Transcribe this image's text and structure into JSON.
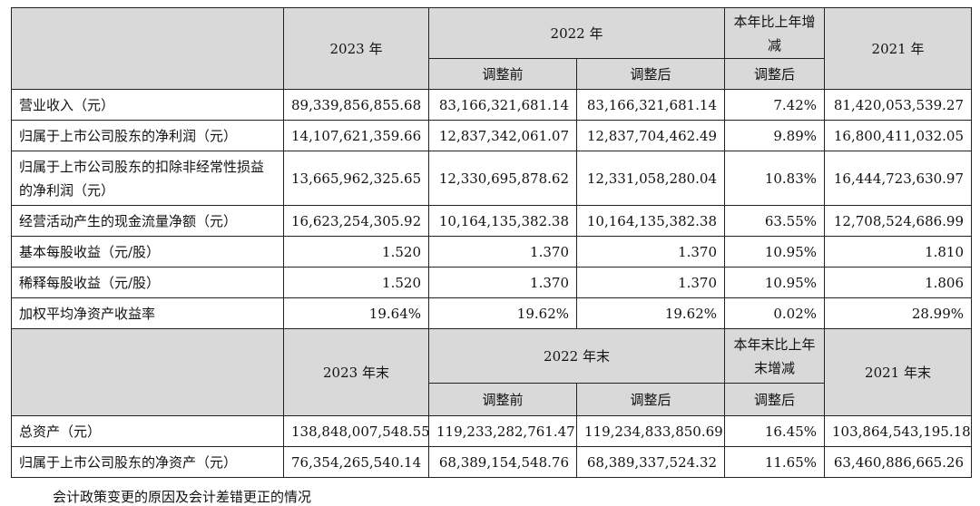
{
  "header1": {
    "col_2023": "2023 年",
    "col_2022": "2022 年",
    "col_change": "本年比上年增减",
    "col_2021": "2021 年",
    "sub_before": "调整前",
    "sub_after": "调整后",
    "sub_change_after": "调整后"
  },
  "rows1": [
    {
      "label": "营业收入（元）",
      "v2023": "89,339,856,855.68",
      "before": "83,166,321,681.14",
      "after": "83,166,321,681.14",
      "change": "7.42%",
      "v2021": "81,420,053,539.27"
    },
    {
      "label": "归属于上市公司股东的净利润（元）",
      "v2023": "14,107,621,359.66",
      "before": "12,837,342,061.07",
      "after": "12,837,704,462.49",
      "change": "9.89%",
      "v2021": "16,800,411,032.05"
    },
    {
      "label": "归属于上市公司股东的扣除非经常性损益的净利润（元）",
      "v2023": "13,665,962,325.65",
      "before": "12,330,695,878.62",
      "after": "12,331,058,280.04",
      "change": "10.83%",
      "v2021": "16,444,723,630.97"
    },
    {
      "label": "经营活动产生的现金流量净额（元）",
      "v2023": "16,623,254,305.92",
      "before": "10,164,135,382.38",
      "after": "10,164,135,382.38",
      "change": "63.55%",
      "v2021": "12,708,524,686.99"
    },
    {
      "label": "基本每股收益（元/股）",
      "v2023": "1.520",
      "before": "1.370",
      "after": "1.370",
      "change": "10.95%",
      "v2021": "1.810"
    },
    {
      "label": "稀释每股收益（元/股）",
      "v2023": "1.520",
      "before": "1.370",
      "after": "1.370",
      "change": "10.95%",
      "v2021": "1.806"
    },
    {
      "label": "加权平均净资产收益率",
      "v2023": "19.64%",
      "before": "19.62%",
      "after": "19.62%",
      "change": "0.02%",
      "v2021": "28.99%"
    }
  ],
  "header2": {
    "col_2023": "2023 年末",
    "col_2022": "2022 年末",
    "col_change": "本年末比上年末增减",
    "col_2021": "2021 年末",
    "sub_before": "调整前",
    "sub_after": "调整后",
    "sub_change_after": "调整后"
  },
  "rows2": [
    {
      "label": "总资产（元）",
      "v2023": "138,848,007,548.55",
      "before": "119,233,282,761.47",
      "after": "119,234,833,850.69",
      "change": "16.45%",
      "v2021": "103,864,543,195.18"
    },
    {
      "label": "归属于上市公司股东的净资产（元）",
      "v2023": "76,354,265,540.14",
      "before": "68,389,154,548.76",
      "after": "68,389,337,524.32",
      "change": "11.65%",
      "v2021": "63,460,886,665.26"
    }
  ],
  "footer_text": "会计政策变更的原因及会计差错更正的情况"
}
